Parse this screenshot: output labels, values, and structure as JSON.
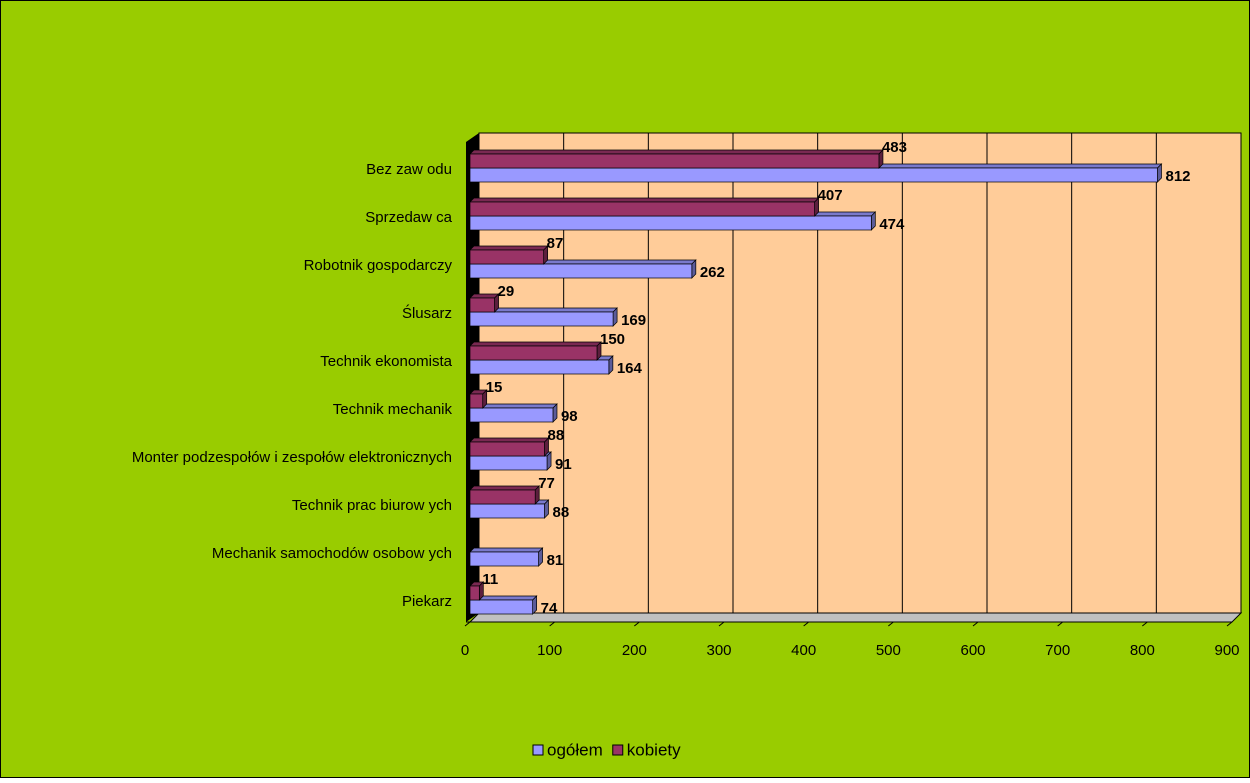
{
  "chart_data": {
    "type": "bar",
    "orientation": "horizontal",
    "categories": [
      "Bez zaw odu",
      "Sprzedaw ca",
      "Robotnik gospodarczy",
      "Ślusarz",
      "Technik ekonomista",
      "Technik mechanik",
      "Monter podzespołów  i zespołów  elektronicznych",
      "Technik prac biurow ych",
      "Mechanik samochodów  osobow ych",
      "Piekarz"
    ],
    "series": [
      {
        "name": "ogółem",
        "color": "#9999ff",
        "values": [
          812,
          474,
          262,
          169,
          164,
          98,
          91,
          88,
          81,
          74
        ]
      },
      {
        "name": "kobiety",
        "color": "#993366",
        "values": [
          483,
          407,
          87,
          29,
          150,
          15,
          88,
          77,
          null,
          11
        ]
      }
    ],
    "xlim": [
      0,
      900
    ],
    "xticks": [
      0,
      100,
      200,
      300,
      400,
      500,
      600,
      700,
      800,
      900
    ],
    "grid": true,
    "legend": "bottom",
    "background": "#99cc00",
    "plot_color": "#ffcc99"
  }
}
